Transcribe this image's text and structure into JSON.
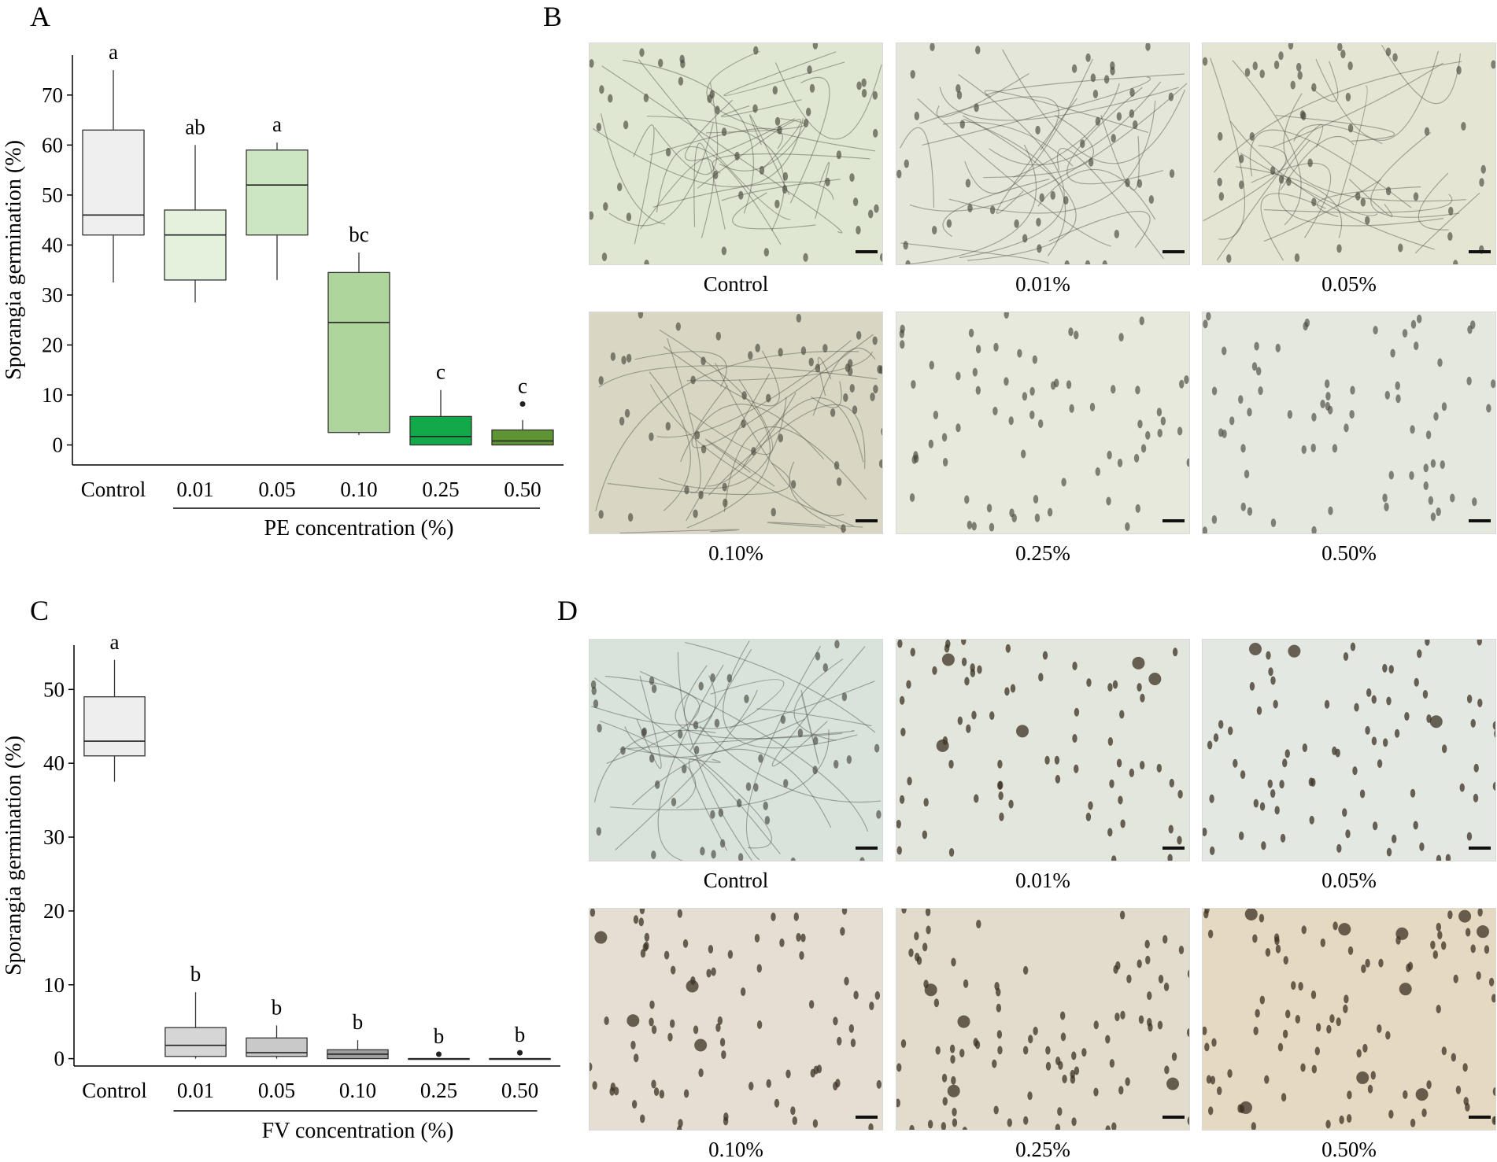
{
  "panels": {
    "a": "A",
    "b": "B",
    "c": "C",
    "d": "D"
  },
  "chart_data": [
    {
      "type": "box",
      "panel": "A",
      "ylabel": "Sporangia germination (%)",
      "xlabel": "PE concentration (%)",
      "ylim": [
        -4,
        78
      ],
      "yticks": [
        0,
        10,
        20,
        30,
        40,
        50,
        60,
        70
      ],
      "categories": [
        "Control",
        "0.01",
        "0.05",
        "0.10",
        "0.25",
        "0.50"
      ],
      "boxes": [
        {
          "min": 32.5,
          "q1": 42,
          "median": 46,
          "q3": 63,
          "max": 75,
          "outliers": [],
          "letter": "a",
          "fill": "#efefef"
        },
        {
          "min": 28.5,
          "q1": 33,
          "median": 42,
          "q3": 47,
          "max": 60,
          "outliers": [],
          "letter": "ab",
          "fill": "#e3f1dd"
        },
        {
          "min": 33,
          "q1": 42,
          "median": 52,
          "q3": 59,
          "max": 60.5,
          "outliers": [],
          "letter": "a",
          "fill": "#cde6c2"
        },
        {
          "min": 2,
          "q1": 2.5,
          "median": 24.5,
          "q3": 34.5,
          "max": 38.5,
          "outliers": [],
          "letter": "bc",
          "fill": "#aed59c"
        },
        {
          "min": 0,
          "q1": 0,
          "median": 1.7,
          "q3": 5.7,
          "max": 11,
          "outliers": [],
          "letter": "c",
          "fill": "#12a94a"
        },
        {
          "min": 0,
          "q1": 0,
          "median": 0.8,
          "q3": 3,
          "max": 5,
          "outliers": [
            8.2
          ],
          "letter": "c",
          "fill": "#5e9432"
        }
      ]
    },
    {
      "type": "box",
      "panel": "C",
      "ylabel": "Sporangia germination (%)",
      "xlabel": "FV concentration (%)",
      "ylim": [
        -1,
        56
      ],
      "yticks": [
        0,
        10,
        20,
        30,
        40,
        50
      ],
      "categories": [
        "Control",
        "0.01",
        "0.05",
        "0.10",
        "0.25",
        "0.50"
      ],
      "boxes": [
        {
          "min": 37.5,
          "q1": 41,
          "median": 43,
          "q3": 49,
          "max": 54,
          "outliers": [],
          "letter": "a",
          "fill": "#eeeeee"
        },
        {
          "min": 0,
          "q1": 0.3,
          "median": 1.8,
          "q3": 4.2,
          "max": 9,
          "outliers": [],
          "letter": "b",
          "fill": "#d6d6d6"
        },
        {
          "min": 0,
          "q1": 0.3,
          "median": 0.8,
          "q3": 2.8,
          "max": 4.5,
          "outliers": [],
          "letter": "b",
          "fill": "#c9c9c9"
        },
        {
          "min": 0,
          "q1": 0,
          "median": 0.6,
          "q3": 1.2,
          "max": 2.5,
          "outliers": [],
          "letter": "b",
          "fill": "#9e9e9e"
        },
        {
          "min": 0,
          "q1": 0,
          "median": 0,
          "q3": 0,
          "max": 0,
          "outliers": [
            0.6
          ],
          "letter": "b",
          "fill": "#cccccc"
        },
        {
          "min": 0,
          "q1": 0,
          "median": 0,
          "q3": 0,
          "max": 0,
          "outliers": [
            0.8
          ],
          "letter": "b",
          "fill": "#cccccc"
        }
      ]
    }
  ],
  "micrographs": {
    "B": [
      {
        "caption": "Control",
        "tone": "#dfe7d2",
        "germinated": true,
        "density": 55
      },
      {
        "caption": "0.01%",
        "tone": "#e3e6d8",
        "germinated": true,
        "density": 50
      },
      {
        "caption": "0.05%",
        "tone": "#e4e6d3",
        "germinated": true,
        "density": 50
      },
      {
        "caption": "0.10%",
        "tone": "#d9d7c4",
        "germinated": true,
        "density": 55
      },
      {
        "caption": "0.25%",
        "tone": "#e6e9dc",
        "germinated": false,
        "density": 70
      },
      {
        "caption": "0.50%",
        "tone": "#e4e8df",
        "germinated": false,
        "density": 70
      }
    ],
    "D": [
      {
        "caption": "Control",
        "tone": "#d8e3dc",
        "germinated": true,
        "density": 50
      },
      {
        "caption": "0.01%",
        "tone": "#e2e6dc",
        "germinated": false,
        "density": 75
      },
      {
        "caption": "0.05%",
        "tone": "#e3e8e3",
        "germinated": false,
        "density": 80
      },
      {
        "caption": "0.10%",
        "tone": "#e4dfd2",
        "germinated": false,
        "density": 85
      },
      {
        "caption": "0.25%",
        "tone": "#e2dccd",
        "germinated": false,
        "density": 95
      },
      {
        "caption": "0.50%",
        "tone": "#e6d9c2",
        "germinated": false,
        "density": 100
      }
    ]
  }
}
